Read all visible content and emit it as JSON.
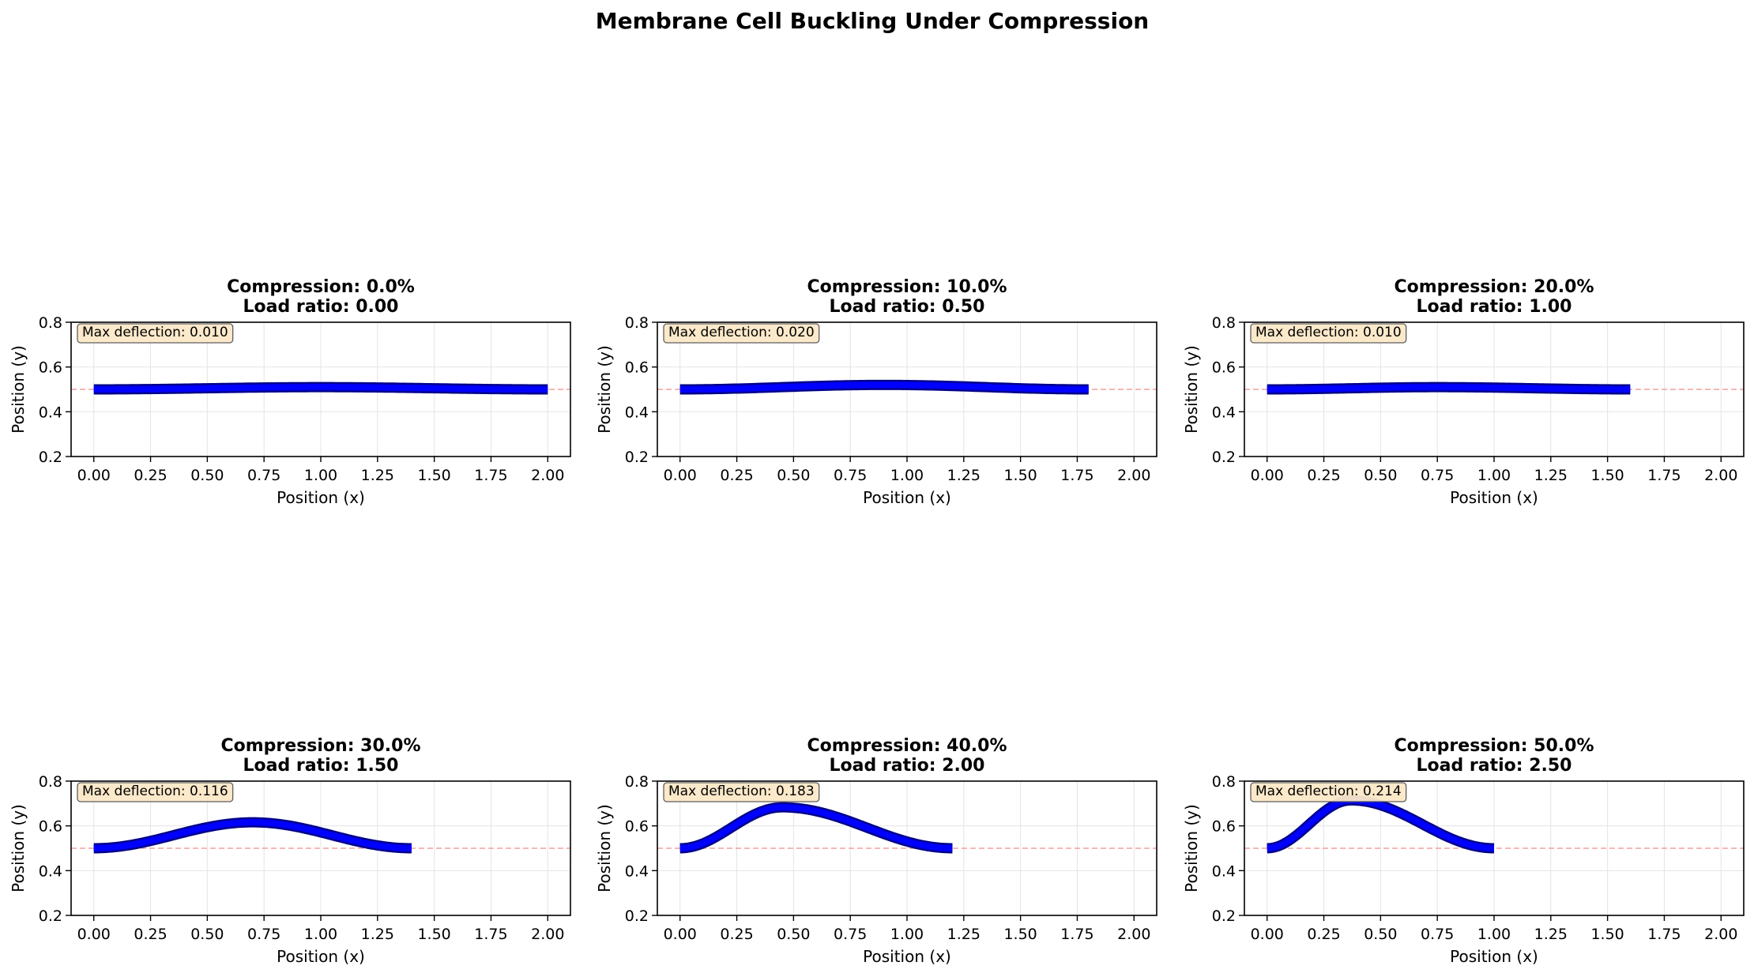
{
  "figure": {
    "suptitle": "Membrane Cell Buckling Under Compression"
  },
  "colors": {
    "membrane": "#0000ff",
    "membrane_edge": "#00008b",
    "reference_line": "#f08080",
    "annotation_bg": "#fbe8c8",
    "grid": "#e4e4e4"
  },
  "chart_data": [
    {
      "type": "line",
      "title_line1": "Compression: 0.0%",
      "title_line2": "Load ratio: 0.00",
      "xlabel": "Position (x)",
      "ylabel": "Position (y)",
      "xlim": [
        -0.1,
        2.1
      ],
      "ylim": [
        0.2,
        0.8
      ],
      "xticks": [
        "0.00",
        "0.25",
        "0.50",
        "0.75",
        "1.00",
        "1.25",
        "1.50",
        "1.75",
        "2.00"
      ],
      "yticks": [
        "0.2",
        "0.4",
        "0.6",
        "0.8"
      ],
      "grid": true,
      "reference_y": 0.5,
      "length": 2.0,
      "peak_x": 1.0,
      "max_deflection": 0.01,
      "annotation": "Max deflection: 0.010"
    },
    {
      "type": "line",
      "title_line1": "Compression: 10.0%",
      "title_line2": "Load ratio: 0.50",
      "xlabel": "Position (x)",
      "ylabel": "Position (y)",
      "xlim": [
        -0.1,
        2.1
      ],
      "ylim": [
        0.2,
        0.8
      ],
      "xticks": [
        "0.00",
        "0.25",
        "0.50",
        "0.75",
        "1.00",
        "1.25",
        "1.50",
        "1.75",
        "2.00"
      ],
      "yticks": [
        "0.2",
        "0.4",
        "0.6",
        "0.8"
      ],
      "grid": true,
      "reference_y": 0.5,
      "length": 1.8,
      "peak_x": 0.9,
      "max_deflection": 0.02,
      "annotation": "Max deflection: 0.020"
    },
    {
      "type": "line",
      "title_line1": "Compression: 20.0%",
      "title_line2": "Load ratio: 1.00",
      "xlabel": "Position (x)",
      "ylabel": "Position (y)",
      "xlim": [
        -0.1,
        2.1
      ],
      "ylim": [
        0.2,
        0.8
      ],
      "xticks": [
        "0.00",
        "0.25",
        "0.50",
        "0.75",
        "1.00",
        "1.25",
        "1.50",
        "1.75",
        "2.00"
      ],
      "yticks": [
        "0.2",
        "0.4",
        "0.6",
        "0.8"
      ],
      "grid": true,
      "reference_y": 0.5,
      "length": 1.6,
      "peak_x": 0.75,
      "max_deflection": 0.01,
      "annotation": "Max deflection: 0.010"
    },
    {
      "type": "line",
      "title_line1": "Compression: 30.0%",
      "title_line2": "Load ratio: 1.50",
      "xlabel": "Position (x)",
      "ylabel": "Position (y)",
      "xlim": [
        -0.1,
        2.1
      ],
      "ylim": [
        0.2,
        0.8
      ],
      "xticks": [
        "0.00",
        "0.25",
        "0.50",
        "0.75",
        "1.00",
        "1.25",
        "1.50",
        "1.75",
        "2.00"
      ],
      "yticks": [
        "0.2",
        "0.4",
        "0.6",
        "0.8"
      ],
      "grid": true,
      "reference_y": 0.5,
      "length": 1.4,
      "peak_x": 0.7,
      "max_deflection": 0.116,
      "annotation": "Max deflection: 0.116"
    },
    {
      "type": "line",
      "title_line1": "Compression: 40.0%",
      "title_line2": "Load ratio: 2.00",
      "xlabel": "Position (x)",
      "ylabel": "Position (y)",
      "xlim": [
        -0.1,
        2.1
      ],
      "ylim": [
        0.2,
        0.8
      ],
      "xticks": [
        "0.00",
        "0.25",
        "0.50",
        "0.75",
        "1.00",
        "1.25",
        "1.50",
        "1.75",
        "2.00"
      ],
      "yticks": [
        "0.2",
        "0.4",
        "0.6",
        "0.8"
      ],
      "grid": true,
      "reference_y": 0.5,
      "length": 1.2,
      "peak_x": 0.45,
      "max_deflection": 0.183,
      "annotation": "Max deflection: 0.183"
    },
    {
      "type": "line",
      "title_line1": "Compression: 50.0%",
      "title_line2": "Load ratio: 2.50",
      "xlabel": "Position (x)",
      "ylabel": "Position (y)",
      "xlim": [
        -0.1,
        2.1
      ],
      "ylim": [
        0.2,
        0.8
      ],
      "xticks": [
        "0.00",
        "0.25",
        "0.50",
        "0.75",
        "1.00",
        "1.25",
        "1.50",
        "1.75",
        "2.00"
      ],
      "yticks": [
        "0.2",
        "0.4",
        "0.6",
        "0.8"
      ],
      "grid": true,
      "reference_y": 0.5,
      "length": 1.0,
      "peak_x": 0.37,
      "max_deflection": 0.214,
      "annotation": "Max deflection: 0.214"
    }
  ]
}
